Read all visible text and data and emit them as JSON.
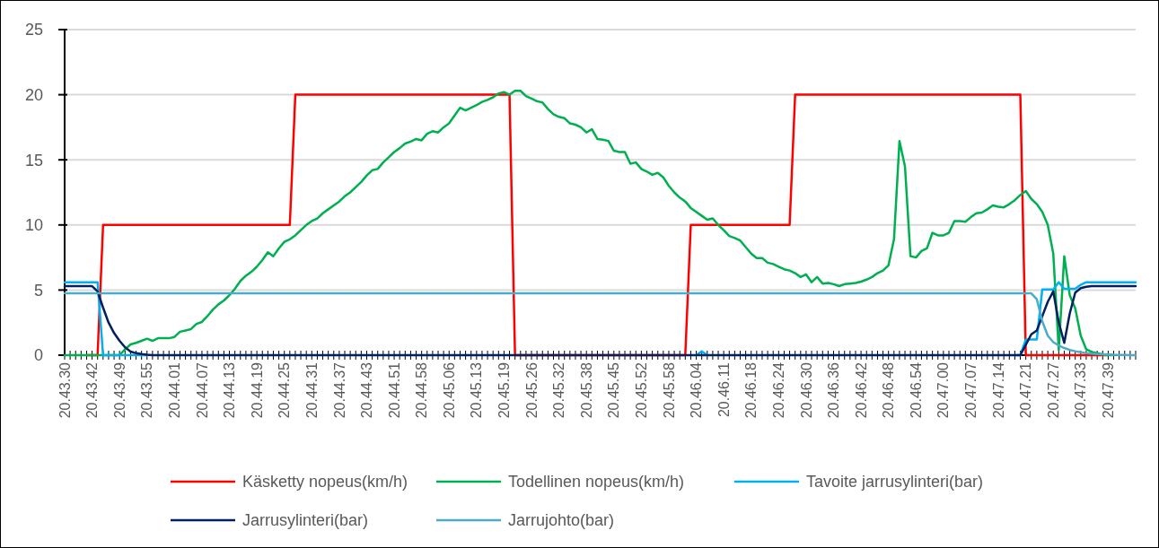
{
  "chart_data": {
    "type": "line",
    "ylim": [
      0,
      25
    ],
    "yticks": [
      0,
      5,
      10,
      15,
      20,
      25
    ],
    "grid": "y",
    "legend": "bottom",
    "marker": "none",
    "line_style": "solid",
    "categories": [
      "20.43.30",
      null,
      null,
      null,
      null,
      "20.43.42",
      null,
      null,
      null,
      null,
      "20.43.49",
      null,
      null,
      null,
      null,
      "20.43.55",
      null,
      null,
      null,
      null,
      "20.44.01",
      null,
      null,
      null,
      null,
      "20.44.07",
      null,
      null,
      null,
      null,
      "20.44.13",
      null,
      null,
      null,
      null,
      "20.44.19",
      null,
      null,
      null,
      null,
      "20.44.25",
      null,
      null,
      null,
      null,
      "20.44.31",
      null,
      null,
      null,
      null,
      "20.44.37",
      null,
      null,
      null,
      null,
      "20.44.43",
      null,
      null,
      null,
      null,
      "20.44.51",
      null,
      null,
      null,
      null,
      "20.44.58",
      null,
      null,
      null,
      null,
      "20.45.06",
      null,
      null,
      null,
      null,
      "20.45.13",
      null,
      null,
      null,
      null,
      "20.45.19",
      null,
      null,
      null,
      null,
      "20.45.26",
      null,
      null,
      null,
      null,
      "20.45.32",
      null,
      null,
      null,
      null,
      "20.45.38",
      null,
      null,
      null,
      null,
      "20.45.45",
      null,
      null,
      null,
      null,
      "20.45.52",
      null,
      null,
      null,
      null,
      "20.45.58",
      null,
      null,
      null,
      null,
      "20.46.04",
      null,
      null,
      null,
      null,
      "20.46.11",
      null,
      null,
      null,
      null,
      "20.46.18",
      null,
      null,
      null,
      null,
      "20.46.24",
      null,
      null,
      null,
      null,
      "20.46.30",
      null,
      null,
      null,
      null,
      "20.46.36",
      null,
      null,
      null,
      null,
      "20.46.42",
      null,
      null,
      null,
      null,
      "20.46.48",
      null,
      null,
      null,
      null,
      "20.46.54",
      null,
      null,
      null,
      null,
      "20.47.00",
      null,
      null,
      null,
      null,
      "20.47.07",
      null,
      null,
      null,
      null,
      "20.47.14",
      null,
      null,
      null,
      null,
      "20.47.21",
      null,
      null,
      null,
      null,
      "20.47.27",
      null,
      null,
      null,
      null,
      "20.47.33",
      null,
      null,
      null,
      null,
      "20.47.39",
      null,
      null,
      null,
      null,
      null
    ],
    "series": [
      {
        "name": "Käsketty nopeus(km/h)",
        "color": "#ff0000",
        "values": [
          null,
          null,
          null,
          null,
          0,
          0,
          0,
          10,
          10,
          10,
          10,
          10,
          10,
          10,
          10,
          10,
          10,
          10,
          10,
          10,
          10,
          10,
          10,
          10,
          10,
          10,
          10,
          10,
          10,
          10,
          10,
          10,
          10,
          10,
          10,
          10,
          10,
          10,
          10,
          10,
          10,
          10,
          20,
          20,
          20,
          20,
          20,
          20,
          20,
          20,
          20,
          20,
          20,
          20,
          20,
          20,
          20,
          20,
          20,
          20,
          20,
          20,
          20,
          20,
          20,
          20,
          20,
          20,
          20,
          20,
          20,
          20,
          20,
          20,
          20,
          20,
          20,
          20,
          20,
          20,
          20,
          20,
          0,
          0,
          0,
          0,
          0,
          0,
          0,
          0,
          0,
          0,
          0,
          0,
          0,
          0,
          0,
          0,
          0,
          0,
          0,
          0,
          0,
          0,
          0,
          0,
          0,
          0,
          0,
          0,
          0,
          0,
          0,
          0,
          10,
          10,
          10,
          10,
          10,
          10,
          10,
          10,
          10,
          10,
          10,
          10,
          10,
          10,
          10,
          10,
          10,
          10,
          10,
          20,
          20,
          20,
          20,
          20,
          20,
          20,
          20,
          20,
          20,
          20,
          20,
          20,
          20,
          20,
          20,
          20,
          20,
          20,
          20,
          20,
          20,
          20,
          20,
          20,
          20,
          20,
          20,
          20,
          20,
          20,
          20,
          20,
          20,
          20,
          20,
          20,
          20,
          20,
          20,
          20,
          20,
          0,
          0,
          0,
          0,
          0,
          0,
          0,
          0,
          0,
          0,
          0,
          0,
          0,
          0,
          0,
          0,
          null,
          null,
          null,
          null,
          null
        ]
      },
      {
        "name": "Todellinen nopeus(km/h)",
        "color": "#00b050",
        "values": [
          0,
          0,
          0,
          0,
          0,
          0,
          0,
          0,
          0,
          0,
          0,
          0.45,
          0.83,
          0.95,
          1.1,
          1.26,
          1.1,
          1.3,
          1.3,
          1.3,
          1.4,
          1.8,
          1.9,
          2.0,
          2.4,
          2.55,
          3.0,
          3.5,
          3.9,
          4.2,
          4.6,
          5.1,
          5.7,
          6.1,
          6.4,
          6.8,
          7.3,
          7.9,
          7.6,
          8.2,
          8.7,
          8.9,
          9.2,
          9.6,
          10.0,
          10.3,
          10.5,
          10.9,
          11.2,
          11.5,
          11.8,
          12.2,
          12.5,
          12.9,
          13.3,
          13.8,
          14.2,
          14.3,
          14.8,
          15.2,
          15.6,
          15.9,
          16.25,
          16.4,
          16.6,
          16.5,
          17.0,
          17.2,
          17.1,
          17.5,
          17.8,
          18.4,
          19.0,
          18.8,
          19.0,
          19.2,
          19.45,
          19.6,
          19.8,
          20.1,
          20.2,
          20.0,
          20.3,
          20.3,
          19.9,
          19.7,
          19.5,
          19.4,
          18.9,
          18.5,
          18.3,
          18.2,
          17.8,
          17.7,
          17.5,
          17.1,
          17.35,
          16.6,
          16.55,
          16.45,
          15.7,
          15.6,
          15.6,
          14.7,
          14.8,
          14.3,
          14.1,
          13.85,
          14.0,
          13.65,
          13.0,
          12.5,
          12.1,
          11.8,
          11.3,
          11.0,
          10.7,
          10.4,
          10.5,
          10.0,
          9.6,
          9.15,
          9.0,
          8.8,
          8.3,
          7.8,
          7.45,
          7.45,
          7.1,
          7.0,
          6.8,
          6.6,
          6.5,
          6.3,
          6.0,
          6.2,
          5.6,
          6.0,
          5.5,
          5.55,
          5.45,
          5.3,
          5.45,
          5.5,
          5.55,
          5.65,
          5.8,
          6.0,
          6.3,
          6.5,
          6.9,
          8.9,
          16.45,
          14.5,
          7.6,
          7.5,
          8.0,
          8.2,
          9.4,
          9.2,
          9.2,
          9.4,
          10.3,
          10.3,
          10.25,
          10.6,
          10.9,
          10.95,
          11.2,
          11.5,
          11.4,
          11.35,
          11.6,
          11.9,
          12.3,
          12.6,
          12.0,
          11.6,
          11.0,
          10.0,
          7.8,
          0.4,
          7.6,
          4.6,
          3.6,
          1.5,
          0.45,
          0.25,
          0.15,
          0.05,
          0,
          0,
          null,
          null,
          null,
          null
        ]
      },
      {
        "name": "Tavoite jarrusylinteri(bar)",
        "color": "#00b0f0",
        "values": [
          5.6,
          5.6,
          5.6,
          5.6,
          5.6,
          5.6,
          5.6,
          0,
          0,
          0,
          0,
          0,
          0,
          0,
          0,
          0,
          null,
          null,
          null,
          null,
          null,
          null,
          null,
          null,
          null,
          null,
          null,
          null,
          null,
          null,
          null,
          null,
          null,
          null,
          null,
          null,
          null,
          null,
          null,
          null,
          null,
          null,
          null,
          null,
          null,
          null,
          null,
          null,
          null,
          null,
          null,
          null,
          null,
          null,
          null,
          null,
          null,
          null,
          null,
          null,
          null,
          null,
          null,
          null,
          null,
          null,
          null,
          null,
          null,
          null,
          null,
          null,
          null,
          null,
          null,
          null,
          null,
          null,
          null,
          null,
          null,
          null,
          null,
          null,
          null,
          null,
          null,
          null,
          null,
          null,
          null,
          null,
          null,
          null,
          null,
          null,
          null,
          null,
          null,
          null,
          null,
          null,
          null,
          null,
          null,
          null,
          null,
          null,
          null,
          null,
          null,
          null,
          null,
          null,
          null,
          0,
          0.3,
          0,
          null,
          null,
          null,
          null,
          null,
          null,
          null,
          null,
          null,
          null,
          null,
          null,
          null,
          null,
          null,
          null,
          null,
          null,
          null,
          null,
          null,
          null,
          null,
          null,
          null,
          null,
          null,
          null,
          null,
          null,
          null,
          null,
          null,
          null,
          null,
          null,
          null,
          null,
          null,
          null,
          null,
          null,
          null,
          null,
          null,
          null,
          null,
          null,
          null,
          null,
          null,
          null,
          null,
          null,
          null,
          0,
          0,
          1.2,
          1.2,
          1.2,
          5.05,
          5.05,
          5.05,
          5.6,
          5.1,
          5.1,
          5.1,
          5.4,
          5.6,
          5.6,
          5.6,
          5.6,
          5.6,
          5.6,
          5.6,
          5.6,
          5.6,
          5.6
        ]
      },
      {
        "name": "Jarrusylinteri(bar)",
        "color": "#002060",
        "values": [
          5.3,
          5.3,
          5.3,
          5.3,
          5.3,
          5.3,
          4.9,
          3.65,
          2.5,
          1.7,
          1.1,
          0.6,
          0.28,
          0.15,
          0.08,
          0.03,
          0,
          0,
          0,
          0,
          0,
          0,
          0,
          0,
          0,
          0,
          0,
          0,
          0,
          0,
          0,
          0,
          0,
          0,
          0,
          0,
          0,
          0,
          0,
          0,
          0,
          0,
          0,
          0,
          0,
          0,
          0,
          0,
          0,
          0,
          0,
          0,
          0,
          0,
          0,
          0,
          0,
          0,
          0,
          0,
          0,
          0,
          0,
          0,
          0,
          0,
          0,
          0,
          0,
          0,
          0,
          0,
          0,
          0,
          0,
          0,
          0,
          0,
          0,
          0,
          0,
          0,
          0,
          0,
          0,
          0,
          0,
          0,
          0,
          0,
          0,
          0,
          0,
          0,
          0,
          0,
          0,
          0,
          0,
          0,
          0,
          0,
          0,
          0,
          0,
          0,
          0,
          0,
          0,
          0,
          0,
          0,
          0,
          0,
          0,
          0,
          0,
          0,
          0,
          0,
          0,
          0,
          0,
          0,
          0,
          0,
          0,
          0,
          0,
          0,
          0,
          0,
          0,
          0,
          0,
          0,
          0,
          0,
          0,
          0,
          0,
          0,
          0,
          0,
          0,
          0,
          0,
          0,
          0,
          0,
          0,
          0,
          0,
          0,
          0,
          0,
          0,
          0,
          0,
          0,
          0,
          0,
          0,
          0,
          0,
          0,
          0,
          0,
          0,
          0,
          0,
          0,
          0,
          0,
          0,
          0.8,
          1.6,
          1.9,
          3.0,
          4.1,
          4.9,
          2.5,
          0.95,
          3.2,
          4.8,
          5.15,
          5.25,
          5.3,
          5.3,
          5.3,
          5.3,
          5.3,
          5.3,
          5.3,
          5.3,
          5.3
        ]
      },
      {
        "name": "Jarrujohto(bar)",
        "color": "#4bacc6",
        "values": [
          4.75,
          4.75,
          4.75,
          4.75,
          4.75,
          4.75,
          4.75,
          4.75,
          4.75,
          4.75,
          4.75,
          4.75,
          4.75,
          4.75,
          4.75,
          4.75,
          4.75,
          4.75,
          4.75,
          4.75,
          4.75,
          4.75,
          4.75,
          4.75,
          4.75,
          4.75,
          4.75,
          4.75,
          4.75,
          4.75,
          4.75,
          4.75,
          4.75,
          4.75,
          4.75,
          4.75,
          4.75,
          4.75,
          4.75,
          4.75,
          4.75,
          4.75,
          4.75,
          4.75,
          4.75,
          4.75,
          4.75,
          4.75,
          4.75,
          4.75,
          4.75,
          4.75,
          4.75,
          4.75,
          4.75,
          4.75,
          4.75,
          4.75,
          4.75,
          4.75,
          4.75,
          4.75,
          4.75,
          4.75,
          4.75,
          4.75,
          4.75,
          4.75,
          4.75,
          4.75,
          4.75,
          4.75,
          4.75,
          4.75,
          4.75,
          4.75,
          4.75,
          4.75,
          4.75,
          4.75,
          4.75,
          4.75,
          4.75,
          4.75,
          4.75,
          4.75,
          4.75,
          4.75,
          4.75,
          4.75,
          4.75,
          4.75,
          4.75,
          4.75,
          4.75,
          4.75,
          4.75,
          4.75,
          4.75,
          4.75,
          4.75,
          4.75,
          4.75,
          4.75,
          4.75,
          4.75,
          4.75,
          4.75,
          4.75,
          4.75,
          4.75,
          4.75,
          4.75,
          4.75,
          4.75,
          4.75,
          4.75,
          4.75,
          4.75,
          4.75,
          4.75,
          4.75,
          4.75,
          4.75,
          4.75,
          4.75,
          4.75,
          4.75,
          4.75,
          4.75,
          4.75,
          4.75,
          4.75,
          4.75,
          4.75,
          4.75,
          4.75,
          4.75,
          4.75,
          4.75,
          4.75,
          4.75,
          4.75,
          4.75,
          4.75,
          4.75,
          4.75,
          4.75,
          4.75,
          4.75,
          4.75,
          4.75,
          4.75,
          4.75,
          4.75,
          4.75,
          4.75,
          4.75,
          4.75,
          4.75,
          4.75,
          4.75,
          4.75,
          4.75,
          4.75,
          4.75,
          4.75,
          4.75,
          4.75,
          4.75,
          4.75,
          4.75,
          4.75,
          4.75,
          4.75,
          4.75,
          4.75,
          4.3,
          2.6,
          1.5,
          1.0,
          0.75,
          0.55,
          0.4,
          0.3,
          0.22,
          0.16,
          0.12,
          0.09,
          0.07,
          0.05,
          0.03,
          0.02,
          0.01,
          0,
          0
        ]
      }
    ]
  }
}
